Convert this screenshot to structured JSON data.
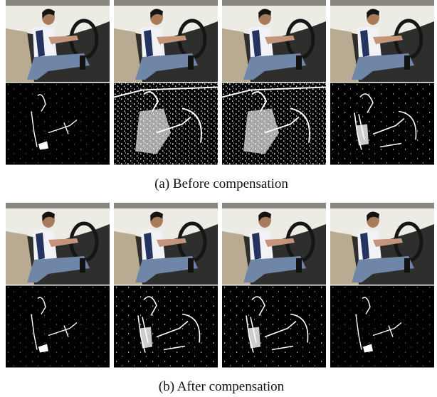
{
  "figure": {
    "panels": [
      {
        "caption": "(a) Before compensation"
      },
      {
        "caption": "(b) After compensation"
      }
    ]
  }
}
